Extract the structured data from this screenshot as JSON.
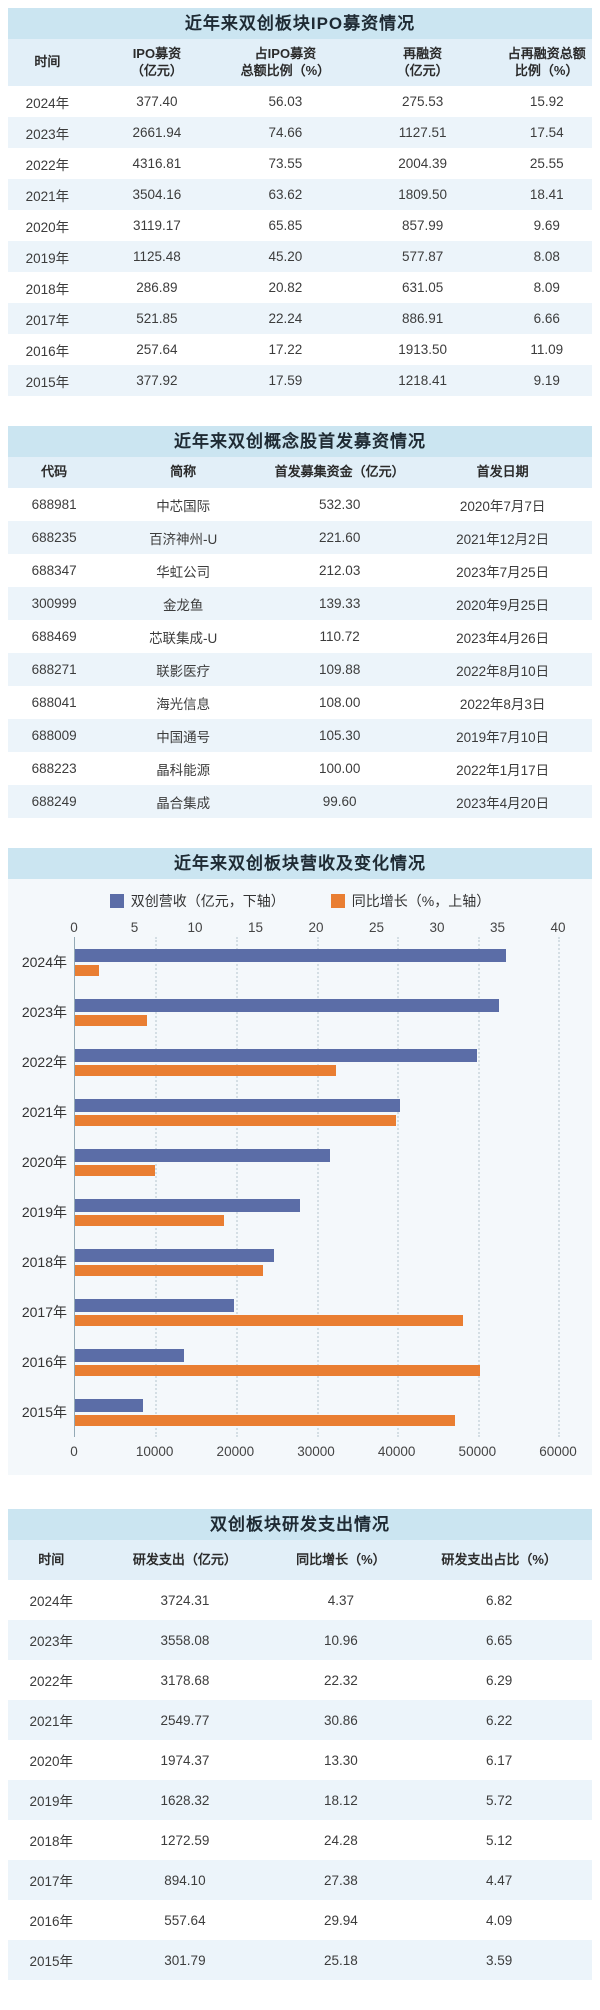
{
  "colors": {
    "title_band": "#cbe5f1",
    "header_row": "#e2eff8",
    "stripe_row": "#ecf4fa",
    "chart_section_bg": "#f4f8fb",
    "bar_blue": "#5b6da7",
    "bar_orange": "#e97e32",
    "text": "#333333"
  },
  "ipo_table": {
    "title": "近年来双创板块IPO募资情况",
    "headers": [
      "时间",
      "IPO募资\n（亿元）",
      "占IPO募资\n总额比例（%）",
      "再融资\n（亿元）",
      "占再融资总额\n比例（%）"
    ],
    "rows": [
      [
        "2024年",
        "377.40",
        "56.03",
        "275.53",
        "15.92"
      ],
      [
        "2023年",
        "2661.94",
        "74.66",
        "1127.51",
        "17.54"
      ],
      [
        "2022年",
        "4316.81",
        "73.55",
        "2004.39",
        "25.55"
      ],
      [
        "2021年",
        "3504.16",
        "63.62",
        "1809.50",
        "18.41"
      ],
      [
        "2020年",
        "3119.17",
        "65.85",
        "857.99",
        "9.69"
      ],
      [
        "2019年",
        "1125.48",
        "45.20",
        "577.87",
        "8.08"
      ],
      [
        "2018年",
        "286.89",
        "20.82",
        "631.05",
        "8.09"
      ],
      [
        "2017年",
        "521.85",
        "22.24",
        "886.91",
        "6.66"
      ],
      [
        "2016年",
        "257.64",
        "17.22",
        "1913.50",
        "11.09"
      ],
      [
        "2015年",
        "377.92",
        "17.59",
        "1218.41",
        "9.19"
      ]
    ]
  },
  "stock_table": {
    "title": "近年来双创概念股首发募资情况",
    "headers": [
      "代码",
      "简称",
      "首发募集资金（亿元）",
      "首发日期"
    ],
    "rows": [
      [
        "688981",
        "中芯国际",
        "532.30",
        "2020年7月7日"
      ],
      [
        "688235",
        "百济神州-U",
        "221.60",
        "2021年12月2日"
      ],
      [
        "688347",
        "华虹公司",
        "212.03",
        "2023年7月25日"
      ],
      [
        "300999",
        "金龙鱼",
        "139.33",
        "2020年9月25日"
      ],
      [
        "688469",
        "芯联集成-U",
        "110.72",
        "2023年4月26日"
      ],
      [
        "688271",
        "联影医疗",
        "109.88",
        "2022年8月10日"
      ],
      [
        "688041",
        "海光信息",
        "108.00",
        "2022年8月3日"
      ],
      [
        "688009",
        "中国通号",
        "105.30",
        "2019年7月10日"
      ],
      [
        "688223",
        "晶科能源",
        "100.00",
        "2022年1月17日"
      ],
      [
        "688249",
        "晶合集成",
        "99.60",
        "2023年4月20日"
      ]
    ]
  },
  "chart_data": {
    "type": "bar",
    "orientation": "horizontal",
    "title": "近年来双创板块营收及变化情况",
    "categories": [
      "2024年",
      "2023年",
      "2022年",
      "2021年",
      "2020年",
      "2019年",
      "2018年",
      "2017年",
      "2016年",
      "2015年"
    ],
    "series": [
      {
        "name": "双创营收（亿元，下轴）",
        "axis": "bottom",
        "color": "#5b6da7",
        "values": [
          53600,
          52700,
          49900,
          40400,
          31700,
          28000,
          24700,
          19800,
          13600,
          8500
        ]
      },
      {
        "name": "同比增长（%，上轴）",
        "axis": "top",
        "color": "#e97e32",
        "values": [
          2.0,
          6.0,
          21.6,
          26.6,
          6.6,
          12.3,
          15.6,
          32.1,
          33.5,
          31.5
        ]
      }
    ],
    "top_axis": {
      "label": "同比增长（%）",
      "ticks": [
        0,
        5,
        10,
        15,
        20,
        25,
        30,
        35,
        40
      ],
      "range": [
        0,
        40
      ]
    },
    "bottom_axis": {
      "label": "双创营收（亿元）",
      "ticks": [
        0,
        10000,
        20000,
        30000,
        40000,
        50000,
        60000
      ],
      "range": [
        0,
        60000
      ]
    },
    "grid": "dotted-vertical-at-bottom-ticks",
    "legend_position": "top-center"
  },
  "rd_table": {
    "title": "双创板块研发支出情况",
    "headers": [
      "时间",
      "研发支出（亿元）",
      "同比增长（%）",
      "研发支出占比（%）"
    ],
    "rows": [
      [
        "2024年",
        "3724.31",
        "4.37",
        "6.82"
      ],
      [
        "2023年",
        "3558.08",
        "10.96",
        "6.65"
      ],
      [
        "2022年",
        "3178.68",
        "22.32",
        "6.29"
      ],
      [
        "2021年",
        "2549.77",
        "30.86",
        "6.22"
      ],
      [
        "2020年",
        "1974.37",
        "13.30",
        "6.17"
      ],
      [
        "2019年",
        "1628.32",
        "18.12",
        "5.72"
      ],
      [
        "2018年",
        "1272.59",
        "24.28",
        "5.12"
      ],
      [
        "2017年",
        "894.10",
        "27.38",
        "4.47"
      ],
      [
        "2016年",
        "557.64",
        "29.94",
        "4.09"
      ],
      [
        "2015年",
        "301.79",
        "25.18",
        "3.59"
      ]
    ]
  }
}
